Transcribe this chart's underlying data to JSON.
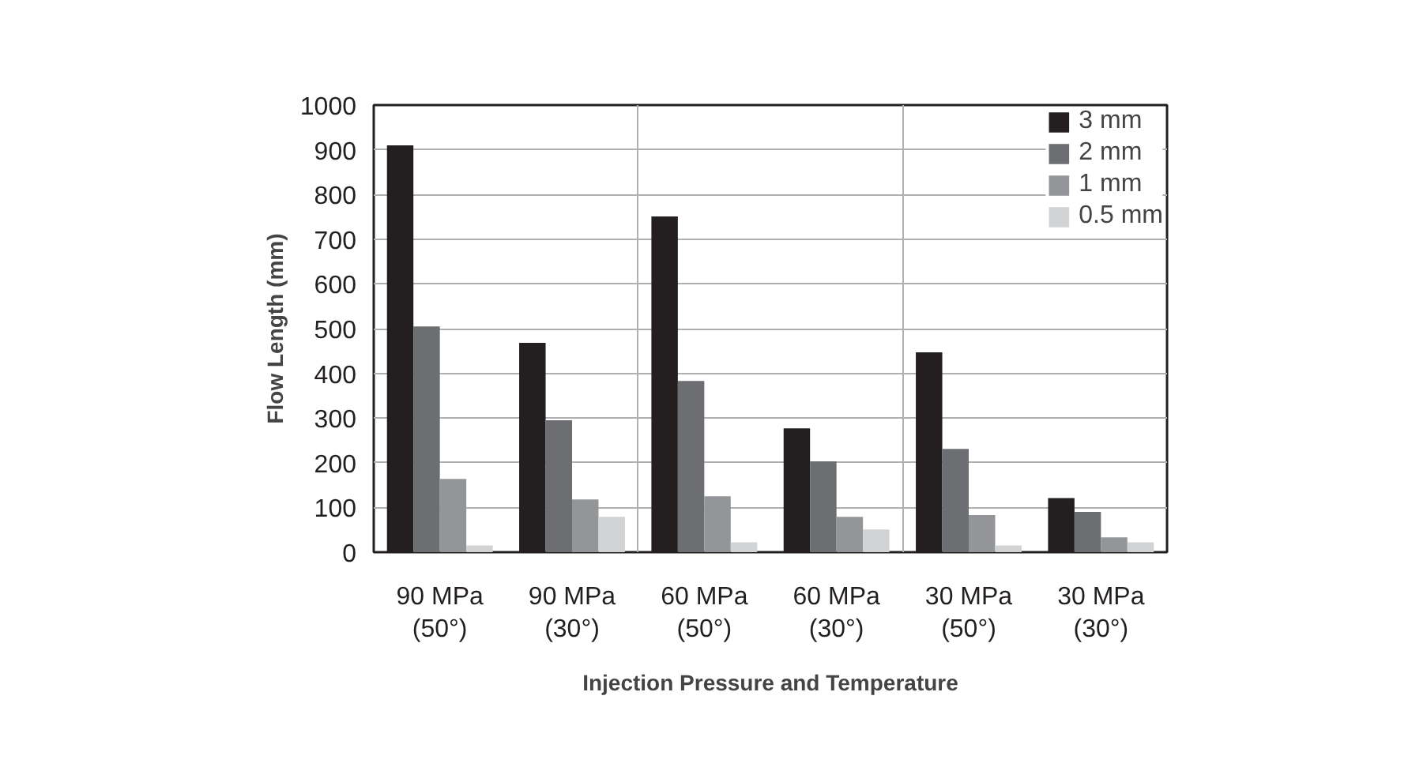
{
  "chart_data": {
    "type": "bar",
    "xlabel": "Injection Pressure and Temperature",
    "ylabel": "Flow Length (mm)",
    "categories": [
      "90 MPa\n(50°)",
      "90 MPa\n(30°)",
      "60 MPa\n(50°)",
      "60 MPa\n(30°)",
      "30 MPa\n(50°)",
      "30 MPa\n(30°)"
    ],
    "series": [
      {
        "name": "3 mm",
        "color": "#231f20",
        "values": [
          910,
          468,
          751,
          277,
          447,
          121
        ]
      },
      {
        "name": "2 mm",
        "color": "#6d6e71",
        "values": [
          505,
          295,
          383,
          203,
          231,
          90
        ]
      },
      {
        "name": "1 mm",
        "color": "#939598",
        "values": [
          164,
          118,
          125,
          79,
          83,
          33
        ]
      },
      {
        "name": "0.5 mm",
        "color": "#d1d3d4",
        "values": [
          15,
          79,
          22,
          51,
          15,
          22
        ]
      }
    ],
    "ylim": [
      0,
      1000
    ],
    "yticks": [
      0,
      100,
      200,
      300,
      400,
      500,
      600,
      700,
      800,
      900,
      1000
    ],
    "grid": true,
    "legend": "top right"
  }
}
